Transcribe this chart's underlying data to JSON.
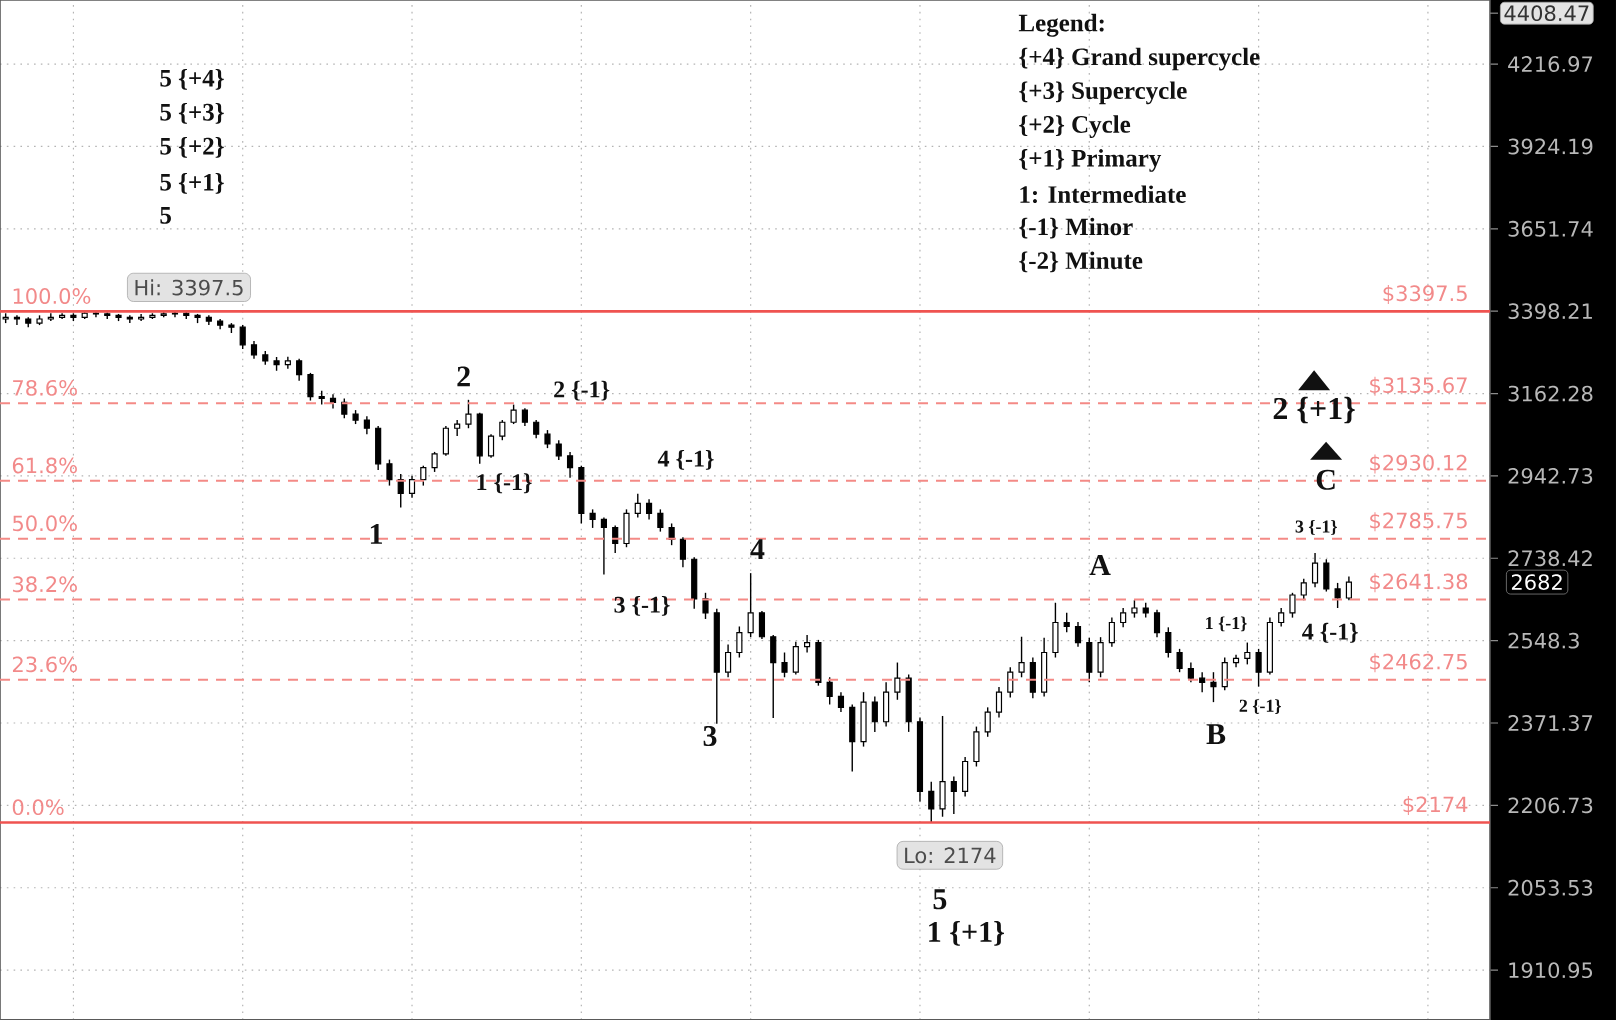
{
  "chart_data": {
    "type": "candlestick",
    "categories": [
      null,
      null,
      null,
      null,
      null,
      null,
      null,
      null,
      null,
      null,
      null,
      null,
      null,
      null,
      null,
      null,
      null,
      null,
      null,
      null,
      null,
      null,
      null,
      null,
      null,
      null,
      null,
      null,
      null,
      null,
      null,
      null,
      null,
      null,
      null,
      null,
      null,
      null,
      null,
      null,
      null,
      null,
      null,
      null,
      null,
      null,
      null,
      null,
      null,
      null,
      null,
      null,
      null,
      null,
      null,
      null,
      null,
      null,
      null,
      null,
      null,
      null,
      null,
      null,
      null,
      null,
      null,
      null,
      null,
      null,
      null,
      null,
      null,
      null,
      null,
      null,
      null,
      null,
      null,
      null,
      null,
      null,
      null,
      null,
      null,
      null,
      null,
      null,
      null,
      null,
      null,
      null,
      null,
      null,
      null,
      null,
      null,
      null,
      null,
      null,
      null,
      null,
      null,
      null,
      null,
      null,
      null,
      null,
      null,
      null,
      null,
      null,
      null,
      null,
      null,
      null,
      null,
      null,
      null,
      null,
      null,
      null,
      null,
      null,
      null,
      null,
      null,
      null,
      null,
      null,
      null,
      null
    ],
    "ohlc": [
      [
        3375,
        3392,
        3363,
        3380
      ],
      [
        3380,
        3386,
        3357,
        3375
      ],
      [
        3375,
        3380,
        3351,
        3363
      ],
      [
        3363,
        3386,
        3357,
        3375
      ],
      [
        3375,
        3392,
        3369,
        3380
      ],
      [
        3380,
        3392,
        3375,
        3386
      ],
      [
        3386,
        3392,
        3369,
        3380
      ],
      [
        3380,
        3395,
        3375,
        3392
      ],
      [
        3392,
        3395,
        3380,
        3390
      ],
      [
        3390,
        3394,
        3375,
        3386
      ],
      [
        3386,
        3390,
        3369,
        3380
      ],
      [
        3380,
        3386,
        3363,
        3375
      ],
      [
        3375,
        3390,
        3369,
        3380
      ],
      [
        3380,
        3392,
        3375,
        3386
      ],
      [
        3386,
        3395,
        3380,
        3390
      ],
      [
        3390,
        3397.5,
        3380,
        3392
      ],
      [
        3392,
        3395,
        3375,
        3386
      ],
      [
        3386,
        3390,
        3363,
        3380
      ],
      [
        3380,
        3386,
        3357,
        3369
      ],
      [
        3369,
        3375,
        3345,
        3357
      ],
      [
        3357,
        3363,
        3334,
        3351
      ],
      [
        3351,
        3357,
        3288,
        3300
      ],
      [
        3300,
        3311,
        3260,
        3271
      ],
      [
        3271,
        3282,
        3243,
        3254
      ],
      [
        3254,
        3265,
        3226,
        3243
      ],
      [
        3243,
        3266,
        3232,
        3254
      ],
      [
        3254,
        3260,
        3198,
        3215
      ],
      [
        3215,
        3220,
        3143,
        3154
      ],
      [
        3154,
        3170,
        3132,
        3149
      ],
      [
        3149,
        3160,
        3121,
        3138
      ],
      [
        3138,
        3149,
        3095,
        3106
      ],
      [
        3106,
        3117,
        3079,
        3090
      ],
      [
        3090,
        3100,
        3052,
        3068
      ],
      [
        3068,
        3074,
        2958,
        2974
      ],
      [
        2974,
        2985,
        2918,
        2933
      ],
      [
        2933,
        2948,
        2863,
        2898
      ],
      [
        2898,
        2943,
        2887,
        2933
      ],
      [
        2933,
        2969,
        2918,
        2964
      ],
      [
        2964,
        3005,
        2953,
        3000
      ],
      [
        3000,
        3074,
        2995,
        3068
      ],
      [
        3068,
        3090,
        3047,
        3079
      ],
      [
        3079,
        3145,
        3068,
        3106
      ],
      [
        3106,
        3110,
        2974,
        2995
      ],
      [
        2995,
        3052,
        2990,
        3047
      ],
      [
        3047,
        3090,
        3036,
        3084
      ],
      [
        3084,
        3132,
        3079,
        3117
      ],
      [
        3117,
        3122,
        3074,
        3084
      ],
      [
        3084,
        3090,
        3041,
        3052
      ],
      [
        3052,
        3063,
        3015,
        3026
      ],
      [
        3026,
        3036,
        2984,
        2995
      ],
      [
        2995,
        3005,
        2938,
        2964
      ],
      [
        2964,
        2969,
        2823,
        2848
      ],
      [
        2848,
        2858,
        2812,
        2833
      ],
      [
        2833,
        2838,
        2700,
        2813
      ],
      [
        2813,
        2818,
        2751,
        2774
      ],
      [
        2774,
        2858,
        2765,
        2848
      ],
      [
        2848,
        2897,
        2838,
        2873
      ],
      [
        2873,
        2883,
        2833,
        2848
      ],
      [
        2848,
        2858,
        2803,
        2813
      ],
      [
        2813,
        2823,
        2770,
        2784
      ],
      [
        2784,
        2789,
        2717,
        2736
      ],
      [
        2736,
        2741,
        2620,
        2643
      ],
      [
        2643,
        2657,
        2597,
        2611
      ],
      [
        2611,
        2620,
        2370,
        2479
      ],
      [
        2479,
        2540,
        2468,
        2522
      ],
      [
        2522,
        2580,
        2511,
        2566
      ],
      [
        2566,
        2703,
        2556,
        2611
      ],
      [
        2611,
        2615,
        2552,
        2557
      ],
      [
        2557,
        2561,
        2382,
        2500
      ],
      [
        2500,
        2522,
        2468,
        2479
      ],
      [
        2479,
        2546,
        2474,
        2535
      ],
      [
        2535,
        2561,
        2522,
        2544
      ],
      [
        2544,
        2550,
        2450,
        2457
      ],
      [
        2457,
        2468,
        2410,
        2427
      ],
      [
        2427,
        2436,
        2394,
        2404
      ],
      [
        2404,
        2410,
        2273,
        2333
      ],
      [
        2333,
        2436,
        2323,
        2415
      ],
      [
        2415,
        2427,
        2353,
        2374
      ],
      [
        2374,
        2457,
        2364,
        2436
      ],
      [
        2436,
        2500,
        2420,
        2466
      ],
      [
        2466,
        2474,
        2353,
        2374
      ],
      [
        2374,
        2383,
        2214,
        2234
      ],
      [
        2234,
        2253,
        2174,
        2200
      ],
      [
        2200,
        2386,
        2185,
        2253
      ],
      [
        2253,
        2263,
        2190,
        2234
      ],
      [
        2234,
        2302,
        2224,
        2293
      ],
      [
        2293,
        2364,
        2283,
        2353
      ],
      [
        2353,
        2404,
        2343,
        2394
      ],
      [
        2394,
        2447,
        2383,
        2436
      ],
      [
        2436,
        2490,
        2425,
        2479
      ],
      [
        2479,
        2557,
        2468,
        2500
      ],
      [
        2500,
        2511,
        2423,
        2436
      ],
      [
        2436,
        2555,
        2427,
        2522
      ],
      [
        2522,
        2634,
        2511,
        2589
      ],
      [
        2589,
        2611,
        2567,
        2580
      ],
      [
        2580,
        2590,
        2535,
        2544
      ],
      [
        2544,
        2555,
        2457,
        2479
      ],
      [
        2479,
        2556,
        2468,
        2544
      ],
      [
        2544,
        2600,
        2535,
        2589
      ],
      [
        2589,
        2622,
        2578,
        2611
      ],
      [
        2611,
        2640,
        2600,
        2622
      ],
      [
        2622,
        2634,
        2600,
        2611
      ],
      [
        2611,
        2618,
        2556,
        2566
      ],
      [
        2566,
        2578,
        2511,
        2522
      ],
      [
        2522,
        2530,
        2479,
        2487
      ],
      [
        2487,
        2500,
        2457,
        2466
      ],
      [
        2466,
        2479,
        2436,
        2457
      ],
      [
        2457,
        2479,
        2415,
        2448
      ],
      [
        2448,
        2511,
        2440,
        2500
      ],
      [
        2500,
        2517,
        2490,
        2509
      ],
      [
        2509,
        2544,
        2496,
        2522
      ],
      [
        2522,
        2530,
        2448,
        2479
      ],
      [
        2479,
        2600,
        2474,
        2589
      ],
      [
        2589,
        2622,
        2580,
        2611
      ],
      [
        2611,
        2657,
        2600,
        2652
      ],
      [
        2652,
        2690,
        2640,
        2680
      ],
      [
        2680,
        2751,
        2670,
        2727
      ],
      [
        2727,
        2736,
        2660,
        2666
      ],
      [
        2666,
        2680,
        2622,
        2645
      ],
      [
        2645,
        2695,
        2640,
        2682
      ],
      null,
      null,
      null,
      null,
      null,
      null,
      null,
      null,
      null,
      null,
      null,
      null
    ],
    "color": "#000000",
    "log": true,
    "ylim": [
      1830,
      4460
    ],
    "yticks": [
      1910.95,
      2053.53,
      2206.73,
      2371.37,
      2548.3,
      2738.42,
      2942.73,
      3162.28,
      3398.21,
      3651.74,
      3924.19,
      4216.97,
      4408.47
    ],
    "grid": true,
    "tick_labels": "y",
    "ref_lines": [
      {
        "axis": "y",
        "value": 3397.5,
        "label": "$3397.5",
        "color": "#ef5350",
        "line_style": "solid"
      },
      {
        "axis": "y",
        "value": 3135.67,
        "label": "$3135.67",
        "color": "#f48a86",
        "line_style": "dashed"
      },
      {
        "axis": "y",
        "value": 2930.12,
        "label": "$2930.12",
        "color": "#f48a86",
        "line_style": "dashed"
      },
      {
        "axis": "y",
        "value": 2785.75,
        "label": "$2785.75",
        "color": "#f48a86",
        "line_style": "dashed"
      },
      {
        "axis": "y",
        "value": 2641.38,
        "label": "$2641.38",
        "color": "#f48a86",
        "line_style": "dashed"
      },
      {
        "axis": "y",
        "value": 2462.75,
        "label": "$2462.75",
        "color": "#f48a86",
        "line_style": "dashed"
      },
      {
        "axis": "y",
        "value": 2174,
        "label": "$2174",
        "color": "#ef5350",
        "line_style": "solid"
      }
    ],
    "annotations": [
      "5 {+4}",
      "5 {+3}",
      "5 {+2}",
      "5 {+1}",
      "5",
      {
        "text": "Hi: 3397.5",
        "y": 3397.5
      },
      "1",
      {
        "text": "2",
        "y": 3145
      },
      "1 {-1}",
      {
        "text": "2 {-1}",
        "y": 3132
      },
      "4 {-1}",
      "3 {-1}",
      {
        "text": "4",
        "y": 2703
      },
      {
        "text": "3",
        "y": 2370
      },
      {
        "text": "Lo: 2174",
        "y": 2174
      },
      {
        "text": "5",
        "y": 2174
      },
      "1 {+1}",
      {
        "text": "A",
        "y": 2640
      },
      {
        "text": "B",
        "y": 2415
      },
      "1 {-1}",
      {
        "text": "2 {-1}",
        "y": 2448
      },
      {
        "text": "3 {-1}",
        "y": 2751
      },
      {
        "text": "4 {-1}",
        "y": 2622
      },
      {
        "text": "2 {+1}",
        "y": 3117
      },
      {
        "text": "C",
        "y": 2933
      },
      {
        "text": "100.0%",
        "y": 3397.5
      },
      {
        "text": "78.6%",
        "y": 3135.67
      },
      {
        "text": "61.8%",
        "y": 2930.12
      },
      {
        "text": "50.0%",
        "y": 2785.75
      },
      {
        "text": "38.2%",
        "y": 2641.38
      },
      {
        "text": "23.6%",
        "y": 2462.75
      },
      {
        "text": "0.0%",
        "y": 2174
      },
      "2682",
      "Legend:",
      "{+4}  Grand supercycle",
      "{+3} Supercycle",
      "{+2} Cycle",
      "{+1} Primary",
      "1: Intermediate",
      "{-1} Minor",
      "{-2} Minute"
    ]
  }
}
